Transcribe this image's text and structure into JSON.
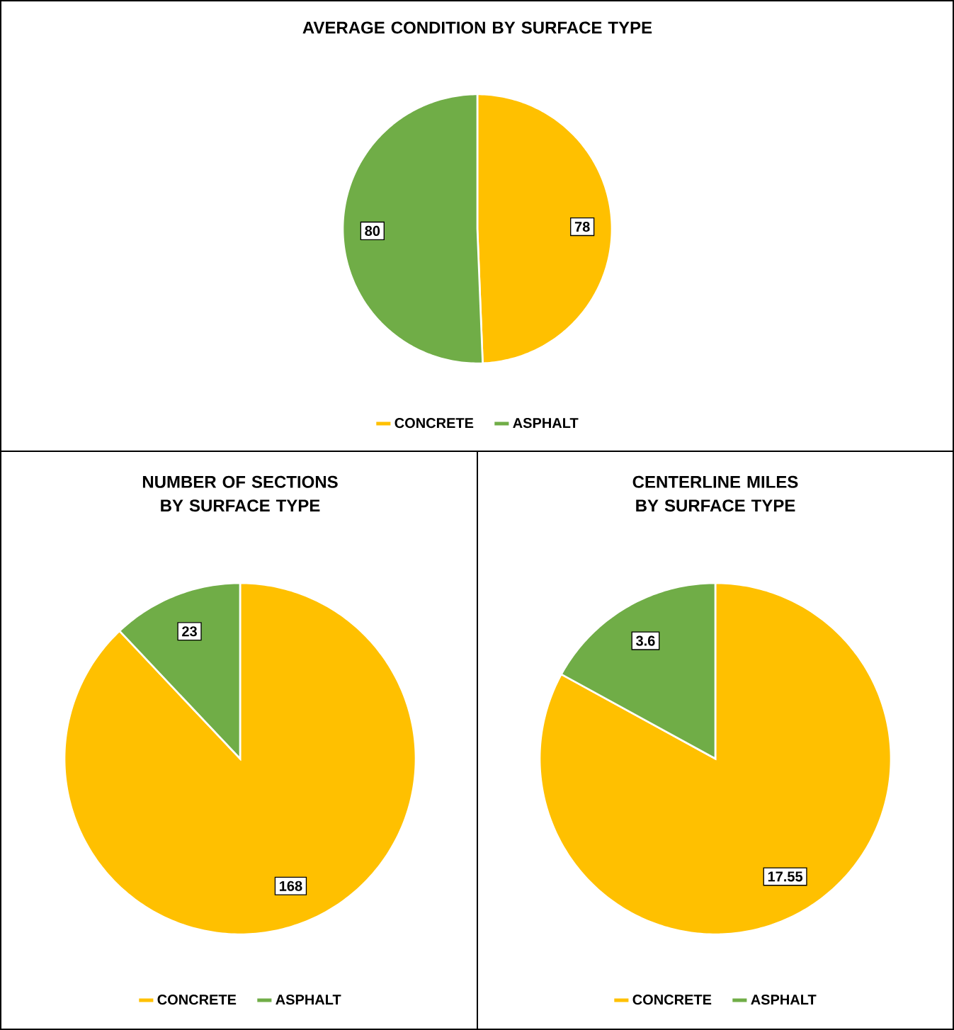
{
  "chart_data": [
    {
      "type": "pie",
      "title": "AVERAGE CONDITION BY SURFACE TYPE",
      "categories": [
        "CONCRETE",
        "ASPHALT"
      ],
      "values": [
        78,
        80
      ],
      "colors": [
        "#ffc000",
        "#70ad47"
      ],
      "data_labels": true,
      "legend": "bottom"
    },
    {
      "type": "pie",
      "title": "NUMBER OF SECTIONS BY SURFACE TYPE",
      "categories": [
        "CONCRETE",
        "ASPHALT"
      ],
      "values": [
        168,
        23
      ],
      "colors": [
        "#ffc000",
        "#70ad47"
      ],
      "data_labels": true,
      "legend": "bottom"
    },
    {
      "type": "pie",
      "title": "CENTERLINE MILES BY SURFACE TYPE",
      "categories": [
        "CONCRETE",
        "ASPHALT"
      ],
      "values": [
        17.55,
        3.6
      ],
      "colors": [
        "#ffc000",
        "#70ad47"
      ],
      "data_labels": true,
      "legend": "bottom"
    }
  ]
}
